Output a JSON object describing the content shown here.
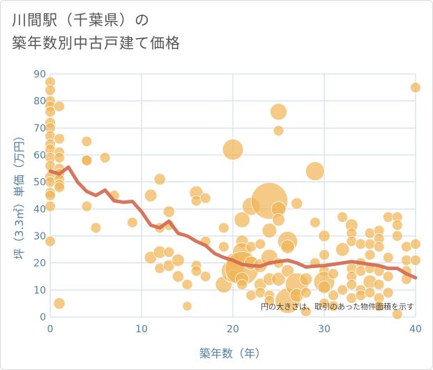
{
  "title_lines": [
    "川間駅（千葉県）の",
    "築年数別中古戸建て価格"
  ],
  "chart_data": {
    "type": "scatter",
    "xlabel": "築年数（年）",
    "ylabel": "坪（3.3㎡）単価（万円）",
    "xlim": [
      0,
      40
    ],
    "ylim": [
      0,
      90
    ],
    "xticks": [
      0,
      10,
      20,
      30,
      40
    ],
    "yticks": [
      0,
      10,
      20,
      30,
      40,
      50,
      60,
      70,
      80,
      90
    ],
    "grid": true,
    "note": "円の大きさは、取引のあった物件面積を示す",
    "colors": {
      "bubble": "#f0b558",
      "line": "#d46a50",
      "grid": "#c9d7e6"
    },
    "trend": {
      "x": [
        0,
        1,
        2,
        3,
        4,
        5,
        6,
        7,
        8,
        9,
        10,
        11,
        12,
        13,
        14,
        15,
        16,
        17,
        18,
        19,
        20,
        21,
        22,
        23,
        24,
        25,
        26,
        27,
        28,
        29,
        30,
        31,
        32,
        33,
        34,
        35,
        36,
        37,
        38,
        39,
        40
      ],
      "y": [
        54,
        53,
        55.5,
        50,
        46.5,
        45,
        47,
        43,
        42.5,
        42.8,
        39,
        34,
        33,
        35.5,
        31,
        30,
        28,
        26.5,
        23.5,
        22,
        21,
        19.5,
        19,
        18.8,
        20,
        20.5,
        21,
        20,
        18.5,
        18.8,
        19,
        19.5,
        20,
        20.5,
        20,
        19.5,
        19,
        18,
        18,
        16,
        14.5
      ]
    },
    "bubbles": [
      {
        "x": 0,
        "y": 87,
        "s": 1
      },
      {
        "x": 0,
        "y": 84,
        "s": 1
      },
      {
        "x": 0,
        "y": 80,
        "s": 1
      },
      {
        "x": 0,
        "y": 78,
        "s": 1
      },
      {
        "x": 0,
        "y": 76,
        "s": 1
      },
      {
        "x": 0,
        "y": 72,
        "s": 1
      },
      {
        "x": 0,
        "y": 70,
        "s": 1
      },
      {
        "x": 0,
        "y": 67,
        "s": 1
      },
      {
        "x": 0,
        "y": 64,
        "s": 1
      },
      {
        "x": 0,
        "y": 62,
        "s": 1
      },
      {
        "x": 0,
        "y": 59,
        "s": 1
      },
      {
        "x": 0,
        "y": 56,
        "s": 1
      },
      {
        "x": 0,
        "y": 52,
        "s": 1
      },
      {
        "x": 0,
        "y": 50,
        "s": 1
      },
      {
        "x": 0,
        "y": 46,
        "s": 1
      },
      {
        "x": 0,
        "y": 45,
        "s": 1
      },
      {
        "x": 0,
        "y": 41,
        "s": 1
      },
      {
        "x": 0,
        "y": 28,
        "s": 1
      },
      {
        "x": 1,
        "y": 78,
        "s": 1
      },
      {
        "x": 1,
        "y": 66,
        "s": 1
      },
      {
        "x": 1,
        "y": 61,
        "s": 1
      },
      {
        "x": 1,
        "y": 59,
        "s": 1
      },
      {
        "x": 1,
        "y": 55,
        "s": 1
      },
      {
        "x": 1,
        "y": 53,
        "s": 1
      },
      {
        "x": 1,
        "y": 51,
        "s": 1
      },
      {
        "x": 1,
        "y": 49,
        "s": 1
      },
      {
        "x": 1,
        "y": 48,
        "s": 1
      },
      {
        "x": 1,
        "y": 5,
        "s": 1.1
      },
      {
        "x": 4,
        "y": 65,
        "s": 1
      },
      {
        "x": 4,
        "y": 58,
        "s": 1
      },
      {
        "x": 4,
        "y": 58,
        "s": 1
      },
      {
        "x": 4,
        "y": 41,
        "s": 1
      },
      {
        "x": 5,
        "y": 33,
        "s": 1
      },
      {
        "x": 6,
        "y": 59,
        "s": 1
      },
      {
        "x": 7,
        "y": 45,
        "s": 1
      },
      {
        "x": 9,
        "y": 35,
        "s": 1
      },
      {
        "x": 11,
        "y": 45,
        "s": 1.2
      },
      {
        "x": 11,
        "y": 22,
        "s": 1.2
      },
      {
        "x": 12,
        "y": 51,
        "s": 1.1
      },
      {
        "x": 12,
        "y": 33,
        "s": 1
      },
      {
        "x": 12,
        "y": 24,
        "s": 1.2
      },
      {
        "x": 12,
        "y": 18,
        "s": 1
      },
      {
        "x": 13,
        "y": 39,
        "s": 1.1
      },
      {
        "x": 13,
        "y": 34,
        "s": 1
      },
      {
        "x": 13,
        "y": 24,
        "s": 1
      },
      {
        "x": 13,
        "y": 19,
        "s": 1.1
      },
      {
        "x": 14,
        "y": 21,
        "s": 1.2
      },
      {
        "x": 14,
        "y": 15,
        "s": 1.1
      },
      {
        "x": 15,
        "y": 12,
        "s": 1
      },
      {
        "x": 15,
        "y": 4,
        "s": 0.9
      },
      {
        "x": 16,
        "y": 46,
        "s": 1.3
      },
      {
        "x": 16,
        "y": 43,
        "s": 1
      },
      {
        "x": 16,
        "y": 19,
        "s": 1
      },
      {
        "x": 16,
        "y": 17,
        "s": 1
      },
      {
        "x": 17,
        "y": 44,
        "s": 1
      },
      {
        "x": 17,
        "y": 28,
        "s": 1
      },
      {
        "x": 17,
        "y": 15,
        "s": 1
      },
      {
        "x": 19,
        "y": 33,
        "s": 1
      },
      {
        "x": 19,
        "y": 26,
        "s": 1
      },
      {
        "x": 19,
        "y": 12,
        "s": 1.6
      },
      {
        "x": 20,
        "y": 62,
        "s": 2
      },
      {
        "x": 20,
        "y": 21,
        "s": 1.3
      },
      {
        "x": 20,
        "y": 17,
        "s": 2.2
      },
      {
        "x": 20,
        "y": 15,
        "s": 1.2
      },
      {
        "x": 21,
        "y": 36,
        "s": 1.5
      },
      {
        "x": 21,
        "y": 28,
        "s": 1.2
      },
      {
        "x": 21,
        "y": 24,
        "s": 1.8
      },
      {
        "x": 21,
        "y": 18,
        "s": 3.2
      },
      {
        "x": 21,
        "y": 14,
        "s": 1.3
      },
      {
        "x": 21,
        "y": 12,
        "s": 1
      },
      {
        "x": 22,
        "y": 41,
        "s": 1.7
      },
      {
        "x": 22,
        "y": 26,
        "s": 1
      },
      {
        "x": 22,
        "y": 20,
        "s": 1.3
      },
      {
        "x": 22,
        "y": 8,
        "s": 1
      },
      {
        "x": 23,
        "y": 27,
        "s": 1
      },
      {
        "x": 23,
        "y": 19,
        "s": 1.3
      },
      {
        "x": 23,
        "y": 12,
        "s": 1.2
      },
      {
        "x": 23,
        "y": 9,
        "s": 1
      },
      {
        "x": 24,
        "y": 43,
        "s": 3.5
      },
      {
        "x": 24,
        "y": 32,
        "s": 1.4
      },
      {
        "x": 24,
        "y": 22,
        "s": 1.6
      },
      {
        "x": 24,
        "y": 14,
        "s": 1.2
      },
      {
        "x": 24,
        "y": 8,
        "s": 1
      },
      {
        "x": 24,
        "y": 6,
        "s": 1
      },
      {
        "x": 25,
        "y": 76,
        "s": 1.6
      },
      {
        "x": 25,
        "y": 69,
        "s": 1
      },
      {
        "x": 25,
        "y": 40,
        "s": 1.4
      },
      {
        "x": 25,
        "y": 36,
        "s": 1.2
      },
      {
        "x": 25,
        "y": 20,
        "s": 1
      },
      {
        "x": 25,
        "y": 14,
        "s": 1.3
      },
      {
        "x": 26,
        "y": 28,
        "s": 1.9
      },
      {
        "x": 26,
        "y": 26,
        "s": 1.3
      },
      {
        "x": 26,
        "y": 17,
        "s": 1.2
      },
      {
        "x": 26,
        "y": 6,
        "s": 2.4
      },
      {
        "x": 27,
        "y": 42,
        "s": 1.1
      },
      {
        "x": 27,
        "y": 12,
        "s": 2.2
      },
      {
        "x": 27,
        "y": 8,
        "s": 1.3
      },
      {
        "x": 28,
        "y": 14,
        "s": 1.2
      },
      {
        "x": 28,
        "y": 9,
        "s": 1
      },
      {
        "x": 28,
        "y": 2,
        "s": 1
      },
      {
        "x": 29,
        "y": 54,
        "s": 1.8
      },
      {
        "x": 29,
        "y": 35,
        "s": 1
      },
      {
        "x": 29,
        "y": 20,
        "s": 1
      },
      {
        "x": 30,
        "y": 30,
        "s": 1.1
      },
      {
        "x": 30,
        "y": 23,
        "s": 1
      },
      {
        "x": 30,
        "y": 17,
        "s": 1
      },
      {
        "x": 30,
        "y": 13,
        "s": 2
      },
      {
        "x": 30,
        "y": 11,
        "s": 1.2
      },
      {
        "x": 30,
        "y": 5,
        "s": 1
      },
      {
        "x": 31,
        "y": 16,
        "s": 1
      },
      {
        "x": 31,
        "y": 8,
        "s": 1
      },
      {
        "x": 31,
        "y": 4,
        "s": 1
      },
      {
        "x": 32,
        "y": 37,
        "s": 1
      },
      {
        "x": 32,
        "y": 25,
        "s": 1.3
      },
      {
        "x": 32,
        "y": 10,
        "s": 1
      },
      {
        "x": 33,
        "y": 34,
        "s": 1.2
      },
      {
        "x": 33,
        "y": 31,
        "s": 1
      },
      {
        "x": 33,
        "y": 28,
        "s": 1
      },
      {
        "x": 33,
        "y": 18,
        "s": 1
      },
      {
        "x": 33,
        "y": 15,
        "s": 1
      },
      {
        "x": 33,
        "y": 12,
        "s": 1
      },
      {
        "x": 33,
        "y": 7,
        "s": 1
      },
      {
        "x": 34,
        "y": 27,
        "s": 1
      },
      {
        "x": 34,
        "y": 20,
        "s": 1
      },
      {
        "x": 34,
        "y": 17,
        "s": 1
      },
      {
        "x": 34,
        "y": 10,
        "s": 1
      },
      {
        "x": 34,
        "y": 8,
        "s": 1
      },
      {
        "x": 35,
        "y": 31,
        "s": 1
      },
      {
        "x": 35,
        "y": 27,
        "s": 1
      },
      {
        "x": 35,
        "y": 23,
        "s": 1
      },
      {
        "x": 35,
        "y": 18,
        "s": 1
      },
      {
        "x": 35,
        "y": 13,
        "s": 1.3
      },
      {
        "x": 35,
        "y": 9,
        "s": 1
      },
      {
        "x": 36,
        "y": 32,
        "s": 1
      },
      {
        "x": 36,
        "y": 29,
        "s": 1
      },
      {
        "x": 36,
        "y": 26,
        "s": 1
      },
      {
        "x": 36,
        "y": 17,
        "s": 1
      },
      {
        "x": 36,
        "y": 12,
        "s": 1
      },
      {
        "x": 36,
        "y": 7,
        "s": 1
      },
      {
        "x": 36,
        "y": 4,
        "s": 1
      },
      {
        "x": 37,
        "y": 37,
        "s": 1
      },
      {
        "x": 37,
        "y": 22,
        "s": 1
      },
      {
        "x": 37,
        "y": 15,
        "s": 1
      },
      {
        "x": 37,
        "y": 9,
        "s": 1
      },
      {
        "x": 38,
        "y": 37,
        "s": 1
      },
      {
        "x": 38,
        "y": 34,
        "s": 1
      },
      {
        "x": 38,
        "y": 30,
        "s": 1
      },
      {
        "x": 38,
        "y": 1,
        "s": 1
      },
      {
        "x": 39,
        "y": 26,
        "s": 1
      },
      {
        "x": 39,
        "y": 21,
        "s": 1
      },
      {
        "x": 39,
        "y": 17,
        "s": 1
      },
      {
        "x": 39,
        "y": 14,
        "s": 1
      },
      {
        "x": 40,
        "y": 85,
        "s": 1
      },
      {
        "x": 40,
        "y": 27,
        "s": 1
      },
      {
        "x": 40,
        "y": 21,
        "s": 1
      }
    ]
  }
}
